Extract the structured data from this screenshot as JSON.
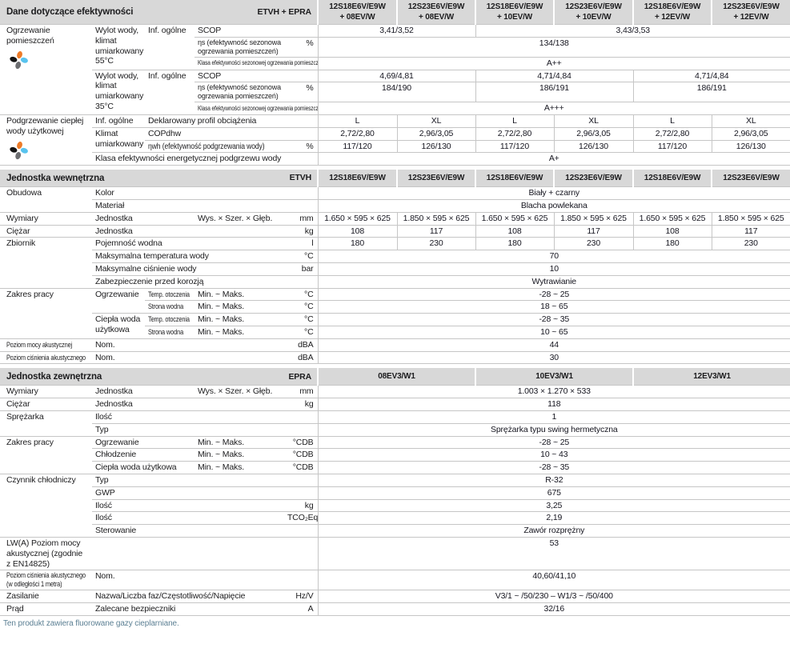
{
  "palette": {
    "header_bg": "#d8d8d8",
    "border": "#c6c6c6",
    "footnote": "#5b7f93",
    "flower": [
      "#ee7b28",
      "#141414",
      "#58c3ee",
      "#6d6e71"
    ]
  },
  "footer": {
    "note": "Ten produkt zawiera fluorowane gazy cieplarniane."
  },
  "sections": [
    {
      "id": "efficiency",
      "title": "Dane dotyczące efektywności",
      "brand": "ETVH + EPRA",
      "models": [
        {
          "t": "12S18E6V/E9W\n+ 08EV/W",
          "cs": 1
        },
        {
          "t": "12S23E6V/E9W\n+ 08EV/W",
          "cs": 1
        },
        {
          "t": "12S18E6V/E9W\n+ 10EV/W",
          "cs": 1
        },
        {
          "t": "12S23E6V/E9W\n+ 10EV/W",
          "cs": 1
        },
        {
          "t": "12S18E6V/E9W\n+ 12EV/W",
          "cs": 1
        },
        {
          "t": "12S23E6V/E9W\n+ 12EV/W",
          "cs": 1
        }
      ],
      "rows": [
        [
          {
            "t": "Ogrzewanie pomieszczeń",
            "rs": 6,
            "cls": "cat top",
            "icon": true
          },
          {
            "t": "Wylot wody, klimat umiarkowany 55°C",
            "rs": 3,
            "cls": "lab top"
          },
          {
            "t": "Inf. ogólne",
            "rs": 3,
            "cls": "lab top"
          },
          {
            "t": "SCOP",
            "cs": 2,
            "cls": "lab"
          },
          {
            "t": "3,41/3,52",
            "cs": 2,
            "cls": "val"
          },
          {
            "t": "3,43/3,53",
            "cs": 4,
            "cls": "val"
          }
        ],
        [
          {
            "t": "ηs (efektywność sezonowa\nogrzewania pomieszczeń)",
            "cls": "lab small top"
          },
          {
            "t": "%",
            "cls": "unit top"
          },
          {
            "t": "134/138",
            "cs": 6,
            "cls": "val top"
          }
        ],
        [
          {
            "t": "Klasa efektywności sezonowej ogrzewania pomieszczeń",
            "cs": 2,
            "cls": "lab tiny",
            "cond": true
          },
          {
            "t": "A++",
            "cs": 6,
            "cls": "val"
          }
        ],
        [
          {
            "t": "Wylot wody, klimat umiarkowany 35°C",
            "rs": 3,
            "cls": "lab top"
          },
          {
            "t": "Inf. ogólne",
            "rs": 3,
            "cls": "lab top"
          },
          {
            "t": "SCOP",
            "cs": 2,
            "cls": "lab"
          },
          {
            "t": "4,69/4,81",
            "cs": 2,
            "cls": "val"
          },
          {
            "t": "4,71/4,84",
            "cs": 2,
            "cls": "val"
          },
          {
            "t": "4,71/4,84",
            "cs": 2,
            "cls": "val"
          }
        ],
        [
          {
            "t": "ηs (efektywność sezonowa\nogrzewania pomieszczeń)",
            "cls": "lab small top"
          },
          {
            "t": "%",
            "cls": "unit top"
          },
          {
            "t": "184/190",
            "cs": 2,
            "cls": "val top"
          },
          {
            "t": "186/191",
            "cs": 2,
            "cls": "val top"
          },
          {
            "t": "186/191",
            "cs": 2,
            "cls": "val top"
          }
        ],
        [
          {
            "t": "Klasa efektywności sezonowej ogrzewania pomieszczeń",
            "cs": 2,
            "cls": "lab tiny",
            "cond": true
          },
          {
            "t": "A+++",
            "cs": 6,
            "cls": "val"
          }
        ],
        [
          {
            "t": "Podgrzewanie ciepłej wody użytkowej",
            "rs": 4,
            "cls": "cat top",
            "icon": true
          },
          {
            "t": "Inf. ogólne",
            "cls": "lab"
          },
          {
            "t": "Deklarowany profil obciążenia",
            "cs": 3,
            "cls": "lab"
          },
          {
            "t": "L",
            "cls": "val"
          },
          {
            "t": "XL",
            "cls": "val"
          },
          {
            "t": "L",
            "cls": "val"
          },
          {
            "t": "XL",
            "cls": "val"
          },
          {
            "t": "L",
            "cls": "val"
          },
          {
            "t": "XL",
            "cls": "val"
          }
        ],
        [
          {
            "t": "Klimat umiarkowany",
            "rs": 2,
            "cls": "lab top"
          },
          {
            "t": "COPdhw",
            "cs": 3,
            "cls": "lab"
          },
          {
            "t": "2,72/2,80",
            "cls": "val"
          },
          {
            "t": "2,96/3,05",
            "cls": "val"
          },
          {
            "t": "2,72/2,80",
            "cls": "val"
          },
          {
            "t": "2,96/3,05",
            "cls": "val"
          },
          {
            "t": "2,72/2,80",
            "cls": "val"
          },
          {
            "t": "2,96/3,05",
            "cls": "val"
          }
        ],
        [
          {
            "t": "ηwh (efektywność podgrzewania wody)",
            "cs": 2,
            "cls": "lab",
            "cond": true
          },
          {
            "t": "%",
            "cls": "unit"
          },
          {
            "t": "117/120",
            "cls": "val"
          },
          {
            "t": "126/130",
            "cls": "val"
          },
          {
            "t": "117/120",
            "cls": "val"
          },
          {
            "t": "126/130",
            "cls": "val"
          },
          {
            "t": "117/120",
            "cls": "val"
          },
          {
            "t": "126/130",
            "cls": "val"
          }
        ],
        [
          {
            "t": "Klasa efektywności energetycznej podgrzewu wody",
            "cs": 4,
            "cls": "lab"
          },
          {
            "t": "A+",
            "cs": 6,
            "cls": "val"
          }
        ]
      ]
    },
    {
      "id": "indoor",
      "title": "Jednostka wewnętrzna",
      "brand": "ETVH",
      "models": [
        {
          "t": "12S18E6V/E9W",
          "cs": 1
        },
        {
          "t": "12S23E6V/E9W",
          "cs": 1
        },
        {
          "t": "12S18E6V/E9W",
          "cs": 1
        },
        {
          "t": "12S23E6V/E9W",
          "cs": 1
        },
        {
          "t": "12S18E6V/E9W",
          "cs": 1
        },
        {
          "t": "12S23E6V/E9W",
          "cs": 1
        }
      ],
      "rows": [
        [
          {
            "t": "Obudowa",
            "rs": 2,
            "cls": "cat top"
          },
          {
            "t": "Kolor",
            "cs": 4,
            "cls": "lab"
          },
          {
            "t": "Biały + czarny",
            "cs": 6,
            "cls": "val"
          }
        ],
        [
          {
            "t": "Materiał",
            "cs": 4,
            "cls": "lab"
          },
          {
            "t": "Blacha powlekana",
            "cs": 6,
            "cls": "val"
          }
        ],
        [
          {
            "t": "Wymiary",
            "cls": "cat"
          },
          {
            "t": "Jednostka",
            "cs": 2,
            "cls": "lab"
          },
          {
            "t": "Wys. × Szer. × Głęb.",
            "cls": "lab"
          },
          {
            "t": "mm",
            "cls": "unit"
          },
          {
            "t": "1.650 × 595 × 625",
            "cls": "val"
          },
          {
            "t": "1.850 × 595 × 625",
            "cls": "val"
          },
          {
            "t": "1.650 × 595 × 625",
            "cls": "val"
          },
          {
            "t": "1.850 × 595 × 625",
            "cls": "val"
          },
          {
            "t": "1.650 × 595 × 625",
            "cls": "val"
          },
          {
            "t": "1.850 × 595 × 625",
            "cls": "val"
          }
        ],
        [
          {
            "t": "Ciężar",
            "cls": "cat"
          },
          {
            "t": "Jednostka",
            "cs": 3,
            "cls": "lab"
          },
          {
            "t": "kg",
            "cls": "unit"
          },
          {
            "t": "108",
            "cls": "val"
          },
          {
            "t": "117",
            "cls": "val"
          },
          {
            "t": "108",
            "cls": "val"
          },
          {
            "t": "117",
            "cls": "val"
          },
          {
            "t": "108",
            "cls": "val"
          },
          {
            "t": "117",
            "cls": "val"
          }
        ],
        [
          {
            "t": "Zbiornik",
            "rs": 4,
            "cls": "cat top"
          },
          {
            "t": "Pojemność wodna",
            "cs": 3,
            "cls": "lab"
          },
          {
            "t": "l",
            "cls": "unit"
          },
          {
            "t": "180",
            "cls": "val"
          },
          {
            "t": "230",
            "cls": "val"
          },
          {
            "t": "180",
            "cls": "val"
          },
          {
            "t": "230",
            "cls": "val"
          },
          {
            "t": "180",
            "cls": "val"
          },
          {
            "t": "230",
            "cls": "val"
          }
        ],
        [
          {
            "t": "Maksymalna temperatura wody",
            "cs": 3,
            "cls": "lab"
          },
          {
            "t": "°C",
            "cls": "unit"
          },
          {
            "t": "70",
            "cs": 6,
            "cls": "val"
          }
        ],
        [
          {
            "t": "Maksymalne ciśnienie wody",
            "cs": 3,
            "cls": "lab"
          },
          {
            "t": "bar",
            "cls": "unit"
          },
          {
            "t": "10",
            "cs": 6,
            "cls": "val"
          }
        ],
        [
          {
            "t": "Zabezpieczenie przed korozją",
            "cs": 4,
            "cls": "lab"
          },
          {
            "t": "Wytrawianie",
            "cs": 6,
            "cls": "val"
          }
        ],
        [
          {
            "t": "Zakres pracy",
            "rs": 4,
            "cls": "cat top"
          },
          {
            "t": "Ogrzewanie",
            "rs": 2,
            "cls": "lab top"
          },
          {
            "t": "Temp. otoczenia",
            "cls": "lab small",
            "cond": true
          },
          {
            "t": "Min. ~ Maks.",
            "cls": "lab"
          },
          {
            "t": "°C",
            "cls": "unit"
          },
          {
            "t": "-28 ~ 25",
            "cs": 6,
            "cls": "val"
          }
        ],
        [
          {
            "t": "Strona wodna",
            "cls": "lab small",
            "cond": true
          },
          {
            "t": "Min. ~ Maks.",
            "cls": "lab"
          },
          {
            "t": "°C",
            "cls": "unit"
          },
          {
            "t": "18 ~ 65",
            "cs": 6,
            "cls": "val"
          }
        ],
        [
          {
            "t": "Ciepła woda użytkowa",
            "rs": 2,
            "cls": "lab top"
          },
          {
            "t": "Temp. otoczenia",
            "cls": "lab small",
            "cond": true
          },
          {
            "t": "Min. ~ Maks.",
            "cls": "lab"
          },
          {
            "t": "°C",
            "cls": "unit"
          },
          {
            "t": "-28 ~ 35",
            "cs": 6,
            "cls": "val"
          }
        ],
        [
          {
            "t": "Strona wodna",
            "cls": "lab small",
            "cond": true
          },
          {
            "t": "Min. ~ Maks.",
            "cls": "lab"
          },
          {
            "t": "°C",
            "cls": "unit"
          },
          {
            "t": "10 ~ 65",
            "cs": 6,
            "cls": "val"
          }
        ],
        [
          {
            "t": "Poziom mocy akustycznej",
            "cls": "cat small",
            "cond": true
          },
          {
            "t": "Nom.",
            "cs": 3,
            "cls": "lab"
          },
          {
            "t": "dBA",
            "cls": "unit"
          },
          {
            "t": "44",
            "cs": 6,
            "cls": "val"
          }
        ],
        [
          {
            "t": "Poziom ciśnienia akustycznego",
            "cls": "cat small",
            "cond": true
          },
          {
            "t": "Nom.",
            "cs": 3,
            "cls": "lab"
          },
          {
            "t": "dBA",
            "cls": "unit"
          },
          {
            "t": "30",
            "cs": 6,
            "cls": "val"
          }
        ]
      ]
    },
    {
      "id": "outdoor",
      "title": "Jednostka zewnętrzna",
      "brand": "EPRA",
      "models": [
        {
          "t": "08EV3/W1",
          "cs": 2
        },
        {
          "t": "10EV3/W1",
          "cs": 2
        },
        {
          "t": "12EV3/W1",
          "cs": 2
        }
      ],
      "rows": [
        [
          {
            "t": "Wymiary",
            "cls": "cat"
          },
          {
            "t": "Jednostka",
            "cs": 2,
            "cls": "lab"
          },
          {
            "t": "Wys. × Szer. × Głęb.",
            "cls": "lab"
          },
          {
            "t": "mm",
            "cls": "unit"
          },
          {
            "t": "1.003 × 1.270 × 533",
            "cs": 6,
            "cls": "val"
          }
        ],
        [
          {
            "t": "Ciężar",
            "cls": "cat"
          },
          {
            "t": "Jednostka",
            "cs": 3,
            "cls": "lab"
          },
          {
            "t": "kg",
            "cls": "unit"
          },
          {
            "t": "118",
            "cs": 6,
            "cls": "val"
          }
        ],
        [
          {
            "t": "Sprężarka",
            "rs": 2,
            "cls": "cat top"
          },
          {
            "t": "Ilość",
            "cs": 4,
            "cls": "lab"
          },
          {
            "t": "1",
            "cs": 6,
            "cls": "val"
          }
        ],
        [
          {
            "t": "Typ",
            "cs": 4,
            "cls": "lab"
          },
          {
            "t": "Sprężarka typu swing hermetyczna",
            "cs": 6,
            "cls": "val"
          }
        ],
        [
          {
            "t": "Zakres pracy",
            "rs": 3,
            "cls": "cat top"
          },
          {
            "t": "Ogrzewanie",
            "cs": 2,
            "cls": "lab"
          },
          {
            "t": "Min. ~ Maks.",
            "cls": "lab"
          },
          {
            "t": "°CDB",
            "cls": "unit"
          },
          {
            "t": "-28 ~ 25",
            "cs": 6,
            "cls": "val"
          }
        ],
        [
          {
            "t": "Chłodzenie",
            "cs": 2,
            "cls": "lab"
          },
          {
            "t": "Min. ~ Maks.",
            "cls": "lab"
          },
          {
            "t": "°CDB",
            "cls": "unit"
          },
          {
            "t": "10 ~ 43",
            "cs": 6,
            "cls": "val"
          }
        ],
        [
          {
            "t": "Ciepła woda użytkowa",
            "cs": 2,
            "cls": "lab"
          },
          {
            "t": "Min. ~ Maks.",
            "cls": "lab"
          },
          {
            "t": "°CDB",
            "cls": "unit"
          },
          {
            "t": "-28 ~ 35",
            "cs": 6,
            "cls": "val"
          }
        ],
        [
          {
            "t": "Czynnik chłodniczy",
            "rs": 5,
            "cls": "cat top"
          },
          {
            "t": "Typ",
            "cs": 4,
            "cls": "lab"
          },
          {
            "t": "R-32",
            "cs": 6,
            "cls": "val"
          }
        ],
        [
          {
            "t": "GWP",
            "cs": 4,
            "cls": "lab"
          },
          {
            "t": "675",
            "cs": 6,
            "cls": "val"
          }
        ],
        [
          {
            "t": "Ilość",
            "cs": 3,
            "cls": "lab"
          },
          {
            "t": "kg",
            "cls": "unit"
          },
          {
            "t": "3,25",
            "cs": 6,
            "cls": "val"
          }
        ],
        [
          {
            "t": "Ilość",
            "cs": 3,
            "cls": "lab"
          },
          {
            "t": "TCO₂Eq",
            "cls": "unit"
          },
          {
            "t": "2,19",
            "cs": 6,
            "cls": "val"
          }
        ],
        [
          {
            "t": "Sterowanie",
            "cs": 4,
            "cls": "lab"
          },
          {
            "t": "Zawór rozprężny",
            "cs": 6,
            "cls": "val"
          }
        ],
        [
          {
            "t": "LW(A) Poziom mocy\nakustycznej (zgodnie\nz EN14825)",
            "cls": "cat top"
          },
          {
            "t": "",
            "cs": 4,
            "cls": "lab"
          },
          {
            "t": "53",
            "cs": 6,
            "cls": "val top"
          }
        ],
        [
          {
            "t": "Poziom ciśnienia akustycznego\n(w odległości 1 metra)",
            "cls": "cat small top",
            "cond": true
          },
          {
            "t": "Nom.",
            "cs": 4,
            "cls": "lab top"
          },
          {
            "t": "40,60/41,10",
            "cs": 6,
            "cls": "val top"
          }
        ],
        [
          {
            "t": "Zasilanie",
            "cls": "cat"
          },
          {
            "t": "Nazwa/Liczba faz/Częstotliwość/Napięcie",
            "cs": 3,
            "cls": "lab"
          },
          {
            "t": "Hz/V",
            "cls": "unit"
          },
          {
            "t": "V3/1 ~ /50/230 – W1/3 ~ /50/400",
            "cs": 6,
            "cls": "val"
          }
        ],
        [
          {
            "t": "Prąd",
            "cls": "cat"
          },
          {
            "t": "Zalecane bezpieczniki",
            "cs": 3,
            "cls": "lab"
          },
          {
            "t": "A",
            "cls": "unit"
          },
          {
            "t": "32/16",
            "cs": 6,
            "cls": "val"
          }
        ]
      ]
    }
  ]
}
